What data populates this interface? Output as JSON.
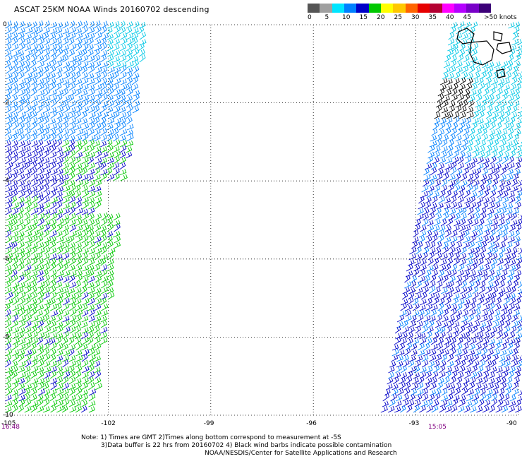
{
  "title": "ASCAT 25KM NOAA Winds 20160702 descending",
  "speed_scale": {
    "labels": [
      "0",
      "5",
      "10",
      "15",
      "20",
      "25",
      "30",
      "35",
      "40",
      "45",
      ">50"
    ],
    "unit": "knots",
    "colors": [
      "#555555",
      "#a0a0a0",
      "#00e5ff",
      "#0080ff",
      "#0000c8",
      "#00c800",
      "#ffff00",
      "#ffc800",
      "#ff6400",
      "#e60000",
      "#b40032",
      "#ff00ff",
      "#b400ff",
      "#7800c8",
      "#3c0078"
    ]
  },
  "axes": {
    "lon_ticks": [
      "-105",
      "-102",
      "-99",
      "-96",
      "-93",
      "-90"
    ],
    "lat_ticks": [
      "0",
      "-2",
      "-4",
      "-6",
      "-8",
      "-10"
    ]
  },
  "swaths": {
    "left_time": "16:48",
    "right_time": "15:05"
  },
  "notes": {
    "line1": "Note: 1) Times are GMT 2)Times along bottom correspond to measurement at -5S",
    "line2": "3)Data buffer is 22 hrs from 20160702 4) Black wind barbs indicate possible contamination",
    "line3": "NOAA/NESDIS/Center for Satellite Applications and Research"
  },
  "wind_colors": {
    "light": "#00c8e6",
    "medium": "#0080ff",
    "strong": "#0000c8",
    "green": "#00c800",
    "contaminated": "#000000"
  }
}
